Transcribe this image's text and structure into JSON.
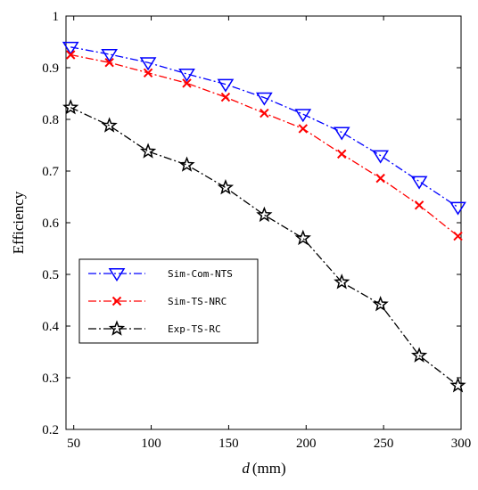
{
  "chart_data": {
    "type": "line",
    "xlabel_var": "d",
    "xlabel_unit": "(mm)",
    "ylabel": "Efficiency",
    "xlim": [
      45,
      300
    ],
    "ylim": [
      0.2,
      1.0
    ],
    "x_ticks": [
      50,
      100,
      150,
      200,
      250,
      300
    ],
    "y_ticks": [
      0.2,
      0.3,
      0.4,
      0.5,
      0.6,
      0.7,
      0.8,
      0.9,
      1.0
    ],
    "x_tick_labels": [
      "50",
      "100",
      "150",
      "200",
      "250",
      "300"
    ],
    "y_tick_labels": [
      "0.2",
      "0.3",
      "0.4",
      "0.5",
      "0.6",
      "0.7",
      "0.8",
      "0.9",
      "1"
    ],
    "grid": false,
    "legend_position": "lower-left",
    "x": [
      48,
      73,
      98,
      123,
      148,
      173,
      198,
      223,
      248,
      273,
      298
    ],
    "series": [
      {
        "name": "Sim-Com-NTS",
        "color": "#0000ff",
        "marker": "triangle-down",
        "dash": "dash-dot",
        "values": [
          0.94,
          0.926,
          0.91,
          0.888,
          0.868,
          0.842,
          0.81,
          0.775,
          0.73,
          0.68,
          0.63
        ]
      },
      {
        "name": "Sim-TS-NRC",
        "color": "#ff0000",
        "marker": "x",
        "dash": "dash-dot",
        "values": [
          0.925,
          0.91,
          0.89,
          0.87,
          0.843,
          0.812,
          0.782,
          0.733,
          0.686,
          0.634,
          0.574
        ]
      },
      {
        "name": "Exp-TS-RC",
        "color": "#000000",
        "marker": "star",
        "dash": "dash-dot",
        "values": [
          0.823,
          0.788,
          0.738,
          0.712,
          0.668,
          0.615,
          0.57,
          0.485,
          0.442,
          0.343,
          0.285
        ]
      }
    ]
  }
}
